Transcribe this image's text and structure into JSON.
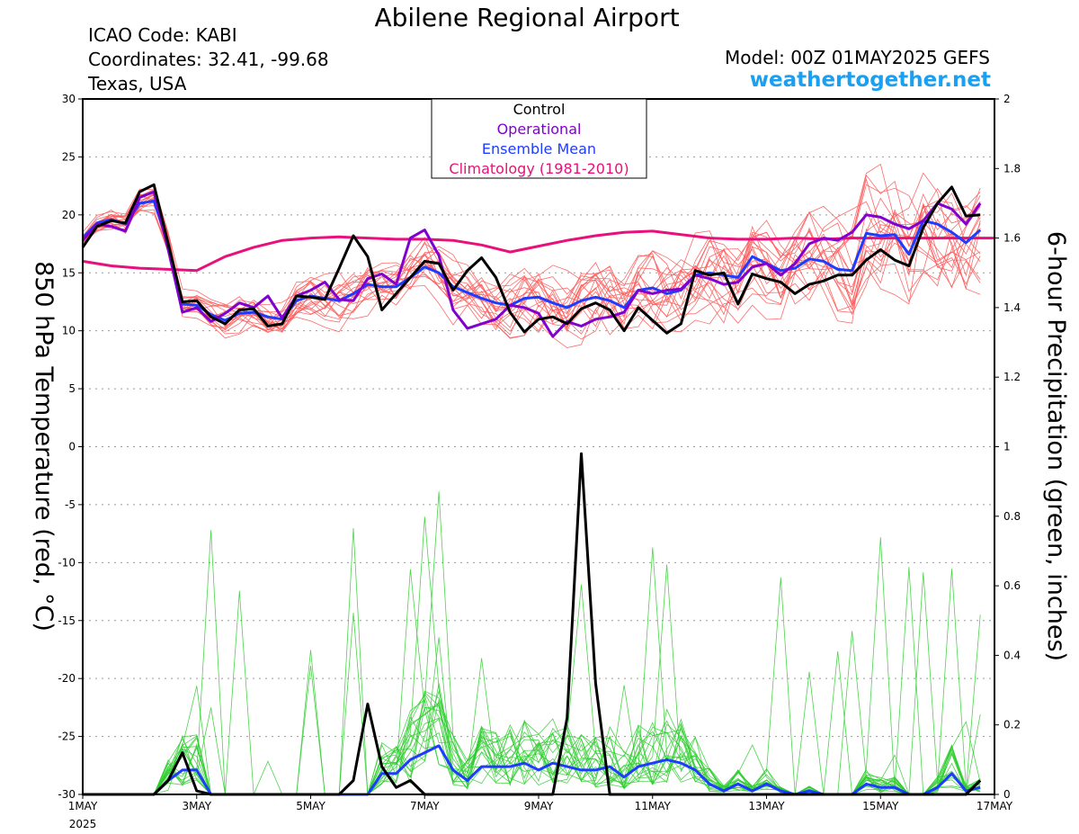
{
  "header": {
    "title": "Abilene Regional Airport",
    "icao": "ICAO Code: KABI",
    "coordinates": "Coordinates: 32.41, -99.68",
    "location": "Texas, USA",
    "model": "Model: 00Z 01MAY2025 GEFS",
    "website": "weathertogether.net"
  },
  "colors": {
    "members_temp": "#ff5a5a",
    "members_precip": "#2ecc2e",
    "control": "#000000",
    "operational": "#8000d0",
    "ensemble_mean": "#1e3cff",
    "climatology": "#e8107a",
    "website": "#1aa0f0"
  },
  "chart_data": {
    "type": "line",
    "ylabel": "850 hPa Temperature (red, °C)",
    "y2label": "6-hour Precipitation (green, inches)",
    "ylim": [
      -30,
      30
    ],
    "y2lim": [
      0,
      2
    ],
    "yticks": [
      "30",
      "25",
      "20",
      "15",
      "10",
      "5",
      "0",
      "-5",
      "-10",
      "-15",
      "-20",
      "-25",
      "-30"
    ],
    "y2ticks": [
      "2",
      "1.8",
      "1.6",
      "1.4",
      "1.2",
      "1",
      "0.8",
      "0.6",
      "0.4",
      "0.2",
      "0"
    ],
    "xticks": [
      {
        "day": 0,
        "label": "1MAY",
        "sub": "2025"
      },
      {
        "day": 2,
        "label": "3MAY"
      },
      {
        "day": 4,
        "label": "5MAY"
      },
      {
        "day": 6,
        "label": "7MAY"
      },
      {
        "day": 8,
        "label": "9MAY"
      },
      {
        "day": 10,
        "label": "11MAY"
      },
      {
        "day": 12,
        "label": "13MAY"
      },
      {
        "day": 14,
        "label": "15MAY"
      },
      {
        "day": 16,
        "label": "17MAY"
      }
    ],
    "x_step_days": 0.25,
    "legend": {
      "position": "top-center",
      "entries": [
        {
          "name": "Control",
          "key": "control"
        },
        {
          "name": "Operational",
          "key": "operational"
        },
        {
          "name": "Ensemble Mean",
          "key": "ensemble_mean"
        },
        {
          "name": "Climatology (1981-2010)",
          "key": "climatology"
        }
      ]
    },
    "series": [
      {
        "key": "control",
        "axis": "left",
        "values": [
          17.2,
          19.0,
          19.5,
          19.3,
          22.0,
          22.6,
          17.5,
          12.5,
          12.6,
          11.2,
          10.6,
          11.8,
          11.9,
          10.4,
          10.6,
          13.0,
          12.9,
          12.7,
          15.4,
          18.2,
          16.4,
          11.8,
          13.2,
          14.6,
          16.0,
          15.8,
          13.5,
          15.2,
          16.3,
          14.6,
          11.6,
          9.9,
          11.0,
          11.2,
          10.6,
          11.9,
          12.4,
          11.8,
          10.0,
          12.0,
          10.9,
          9.8,
          10.6,
          15.2,
          14.8,
          15.0,
          12.3,
          14.9,
          14.5,
          14.2,
          13.2,
          14.0,
          14.3,
          14.8,
          14.8,
          16.1,
          17.0,
          16.1,
          15.6,
          18.9,
          21.0,
          22.4,
          19.9,
          20.0
        ]
      },
      {
        "key": "operational",
        "axis": "left",
        "values": [
          17.8,
          19.2,
          19.0,
          18.6,
          21.5,
          22.0,
          17.0,
          11.6,
          12.0,
          10.8,
          11.5,
          12.4,
          12.0,
          13.0,
          11.1,
          13.0,
          13.5,
          14.2,
          12.7,
          12.6,
          14.5,
          14.9,
          14.0,
          18.0,
          18.7,
          16.5,
          11.8,
          10.2,
          10.6,
          11.0,
          12.2,
          12.0,
          11.5,
          9.5,
          10.8,
          10.4,
          11.0,
          11.2,
          11.6,
          13.5,
          13.2,
          13.5,
          13.6,
          14.8,
          14.5,
          14.0,
          14.2,
          15.5,
          15.8,
          14.8,
          15.8,
          17.5,
          18.0,
          17.8,
          18.5,
          20.0,
          19.8,
          19.2,
          18.8,
          19.5,
          21.0,
          20.5,
          19.2,
          21.0
        ]
      },
      {
        "key": "ensemble_mean",
        "axis": "left",
        "values": [
          18.0,
          19.3,
          19.6,
          19.2,
          21.0,
          21.2,
          17.5,
          12.3,
          12.2,
          11.4,
          10.9,
          11.5,
          11.6,
          11.2,
          11.0,
          12.6,
          13.0,
          12.8,
          12.6,
          13.2,
          14.0,
          13.8,
          13.8,
          14.6,
          15.5,
          15.0,
          13.8,
          13.3,
          12.8,
          12.4,
          12.2,
          12.8,
          12.9,
          12.4,
          12.0,
          12.6,
          12.9,
          12.6,
          12.0,
          13.5,
          13.7,
          13.2,
          13.5,
          14.8,
          15.0,
          14.8,
          14.6,
          16.4,
          15.8,
          15.2,
          15.4,
          16.2,
          16.0,
          15.3,
          15.2,
          18.4,
          18.2,
          18.3,
          16.6,
          19.5,
          19.2,
          18.5,
          17.6,
          18.7
        ]
      },
      {
        "key": "climatology",
        "axis": "left",
        "values": [
          16.0,
          15.6,
          15.4,
          15.3,
          15.2,
          16.4,
          17.2,
          17.8,
          18.0,
          18.1,
          18.0,
          17.9,
          17.9,
          17.8,
          17.4,
          16.8,
          17.3,
          17.8,
          18.2,
          18.5,
          18.6,
          18.3,
          18.0,
          17.9,
          17.9,
          18.0,
          17.9,
          18.0,
          18.0,
          18.0,
          18.0,
          18.0,
          18.0
        ]
      },
      {
        "key": "control",
        "axis": "right",
        "values": [
          0.0,
          0.0,
          0.0,
          0.0,
          0.0,
          0.0,
          0.04,
          0.12,
          0.01,
          0.0,
          0.0,
          0.0,
          0.0,
          0.0,
          0.0,
          0.0,
          0.0,
          0.0,
          0.0,
          0.04,
          0.26,
          0.08,
          0.02,
          0.04,
          0.0,
          0.0,
          0.0,
          0.0,
          0.0,
          0.0,
          0.0,
          0.0,
          0.0,
          0.0,
          0.22,
          0.98,
          0.32,
          0.0,
          0.0,
          0.0,
          0.0,
          0.0,
          0.0,
          0.0,
          0.0,
          0.0,
          0.0,
          0.0,
          0.0,
          0.0,
          0.0,
          0.0,
          0.0,
          0.0,
          0.0,
          0.0,
          0.0,
          0.0,
          0.0,
          0.0,
          0.0,
          0.0,
          0.0,
          0.04
        ]
      },
      {
        "key": "ensemble_mean",
        "axis": "right",
        "values": [
          0.0,
          0.0,
          0.0,
          0.0,
          0.0,
          0.0,
          0.04,
          0.07,
          0.07,
          0.0,
          0.0,
          0.0,
          0.0,
          0.0,
          0.0,
          0.0,
          0.0,
          0.0,
          0.0,
          0.0,
          0.0,
          0.06,
          0.06,
          0.1,
          0.12,
          0.14,
          0.07,
          0.04,
          0.08,
          0.08,
          0.08,
          0.09,
          0.07,
          0.09,
          0.08,
          0.07,
          0.07,
          0.08,
          0.05,
          0.08,
          0.09,
          0.1,
          0.09,
          0.07,
          0.03,
          0.01,
          0.03,
          0.01,
          0.03,
          0.01,
          0.0,
          0.01,
          0.0,
          0.0,
          0.0,
          0.03,
          0.02,
          0.02,
          0.0,
          0.0,
          0.02,
          0.06,
          0.01,
          0.02
        ]
      }
    ]
  }
}
